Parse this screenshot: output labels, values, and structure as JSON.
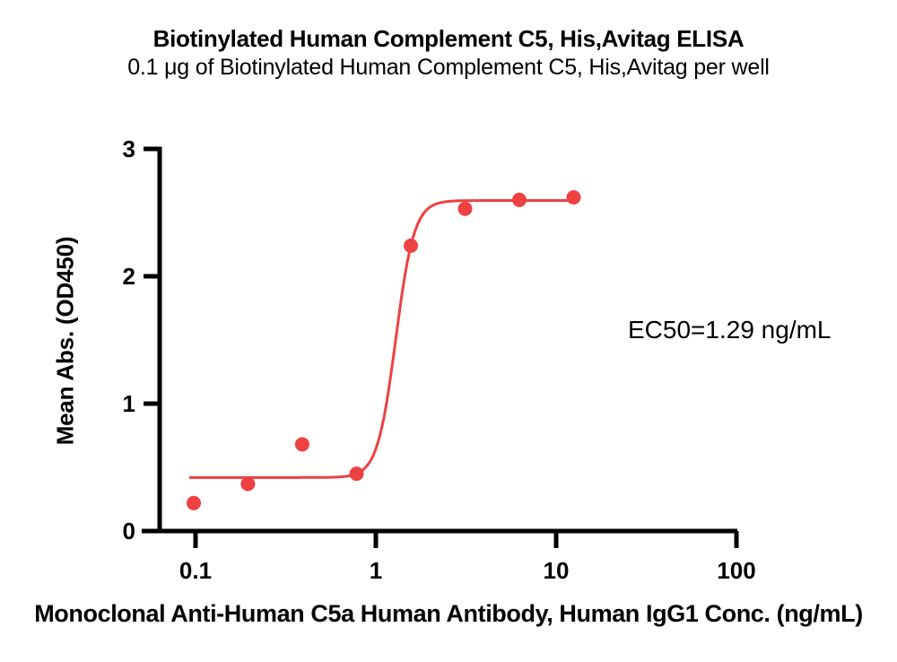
{
  "chart_data": {
    "type": "scatter",
    "title": "Biotinylated Human Complement C5, His,Avitag ELISA",
    "subtitle": "0.1 μg of Biotinylated Human Complement C5, His,Avitag per well",
    "xlabel": "Monoclonal Anti-Human C5a Human Antibody, Human IgG1 Conc. (ng/mL)",
    "ylabel": "Mean Abs. (OD450)",
    "annotation": "EC50=1.29 ng/mL",
    "x_scale": "log10",
    "x_ticks": [
      0.1,
      1,
      10,
      100
    ],
    "x_tick_labels": [
      "0.1",
      "1",
      "10",
      "100"
    ],
    "y_ticks": [
      0,
      1,
      2,
      3
    ],
    "ylim": [
      0,
      3
    ],
    "x": [
      0.0977,
      0.1953,
      0.3906,
      0.7813,
      1.5625,
      3.125,
      6.25,
      12.5
    ],
    "y": [
      0.22,
      0.37,
      0.68,
      0.45,
      2.24,
      2.53,
      2.6,
      2.62
    ],
    "fit_curve": {
      "model": "4PL",
      "bottom": 0.42,
      "top": 2.595,
      "ec50": 1.29,
      "hill_slope": 8.5,
      "x_start": 0.0935,
      "x_end": 13.2
    },
    "colors": {
      "series": "#ED4142",
      "axis": "#000000",
      "text": "#000000"
    },
    "grid": false,
    "legend": "none"
  }
}
